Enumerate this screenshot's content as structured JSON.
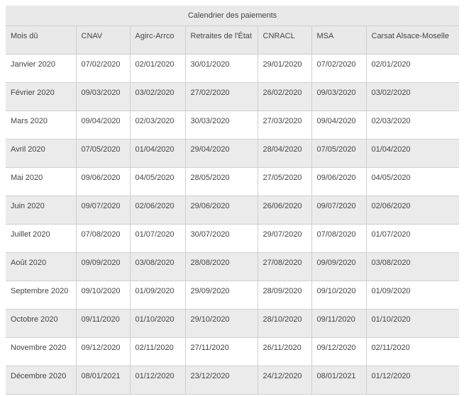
{
  "table": {
    "caption": "Calendrier des paiements",
    "headers": [
      "Mois dû",
      "CNAV",
      "Agirc-Arrco",
      "Retraites de l'État",
      "CNRACL",
      "MSA",
      "Carsat Alsace-Moselle"
    ],
    "rows": [
      [
        "Janvier 2020",
        "07/02/2020",
        "02/01/2020",
        "30/01/2020",
        "29/01/2020",
        "07/02/2020",
        "02/01/2020"
      ],
      [
        "Février 2020",
        "09/03/2020",
        "03/02/2020",
        "27/02/2020",
        "26/02/2020",
        "09/03/2020",
        "03/02/2020"
      ],
      [
        "Mars 2020",
        "09/04/2020",
        "02/03/2020",
        "30/03/2020",
        "27/03/2020",
        "09/04/2020",
        "02/03/2020"
      ],
      [
        "Avril 2020",
        "07/05/2020",
        "01/04/2020",
        "29/04/2020",
        "28/04/2020",
        "07/05/2020",
        "01/04/2020"
      ],
      [
        "Mai 2020",
        "09/06/2020",
        "04/05/2020",
        "28/05/2020",
        "27/05/2020",
        "09/06/2020",
        "04/05/2020"
      ],
      [
        "Juin 2020",
        "09/07/2020",
        "02/06/2020",
        "29/06/2020",
        "26/06/2020",
        "09/07/2020",
        "02/06/2020"
      ],
      [
        "Juillet 2020",
        "07/08/2020",
        "01/07/2020",
        "30/07/2020",
        "29/07/2020",
        "07/08/2020",
        "01/07/2020"
      ],
      [
        "Août 2020",
        "09/09/2020",
        "03/08/2020",
        "28/08/2020",
        "27/08/2020",
        "09/09/2020",
        "03/08/2020"
      ],
      [
        "Septembre 2020",
        "09/10/2020",
        "01/09/2020",
        "29/09/2020",
        "28/09/2020",
        "09/10/2020",
        "01/09/2020"
      ],
      [
        "Octobre 2020",
        "09/11/2020",
        "01/10/2020",
        "29/10/2020",
        "28/10/2020",
        "09/11/2020",
        "01/10/2020"
      ],
      [
        "Novembre 2020",
        "09/12/2020",
        "02/11/2020",
        "27/11/2020",
        "26/11/2020",
        "09/12/2020",
        "02/11/2020"
      ],
      [
        "Décembre 2020",
        "08/01/2021",
        "01/12/2020",
        "23/12/2020",
        "24/12/2020",
        "08/01/2021",
        "01/12/2020"
      ]
    ]
  },
  "colors": {
    "header_bg": "#e9e9e9",
    "row_alt_bg": "#ebebeb",
    "row_bg": "#ffffff",
    "border": "#cfcfcf",
    "text": "#444444"
  }
}
